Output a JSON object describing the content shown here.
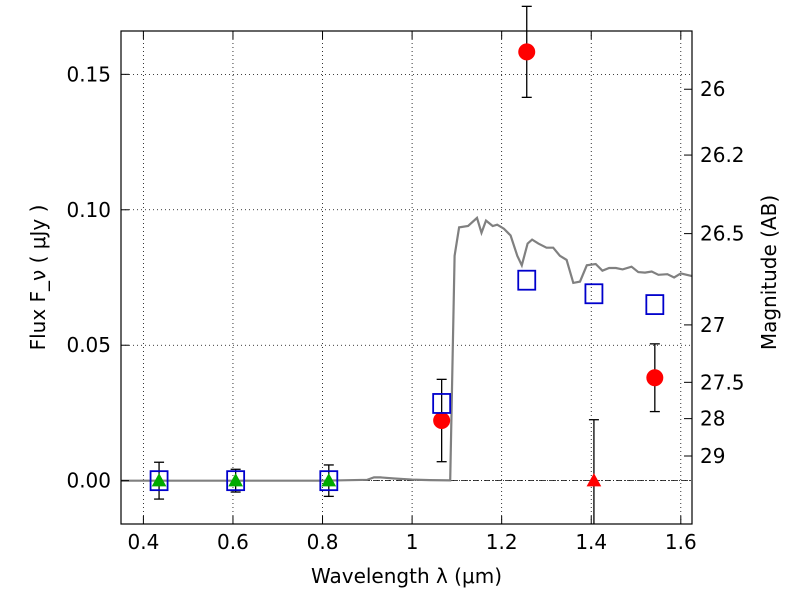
{
  "chart_data": {
    "type": "scatter",
    "title": "",
    "xlabel": "Wavelength  λ (μm)",
    "ylabel": "Flux  F_ν  ( μJy )",
    "ylabel_right": "Magnitude (AB)",
    "xlim": [
      0.35,
      1.625
    ],
    "ylim": [
      -0.016,
      0.166
    ],
    "grid": true,
    "x_ticks": [
      0.4,
      0.6,
      0.8,
      1.0,
      1.2,
      1.4,
      1.6
    ],
    "x_tick_labels": [
      "0.4",
      "0.6",
      "0.8",
      "1",
      "1.2",
      "1.4",
      "1.6"
    ],
    "y_ticks": [
      0.0,
      0.05,
      0.1,
      0.15
    ],
    "y_tick_labels": [
      "0.00",
      "0.05",
      "0.10",
      "0.15"
    ],
    "right_ticks": [
      {
        "label": "26",
        "flux": 0.1445
      },
      {
        "label": "26.2",
        "flux": 0.1202
      },
      {
        "label": "26.5",
        "flux": 0.0912
      },
      {
        "label": "27",
        "flux": 0.0575
      },
      {
        "label": "27.5",
        "flux": 0.0363
      },
      {
        "label": "28",
        "flux": 0.0229
      },
      {
        "label": "29",
        "flux": 0.0091
      }
    ],
    "zero_line": 0.0,
    "model_sed": {
      "color": "#808080",
      "x": [
        0.35,
        0.6,
        0.8,
        0.9,
        0.915,
        0.93,
        0.96,
        1.0,
        1.04,
        1.085,
        1.095,
        1.105,
        1.125,
        1.145,
        1.155,
        1.165,
        1.18,
        1.19,
        1.205,
        1.22,
        1.235,
        1.245,
        1.258,
        1.268,
        1.282,
        1.3,
        1.315,
        1.33,
        1.345,
        1.36,
        1.375,
        1.39,
        1.41,
        1.425,
        1.44,
        1.455,
        1.47,
        1.49,
        1.505,
        1.52,
        1.535,
        1.55,
        1.57,
        1.585,
        1.6,
        1.625
      ],
      "y": [
        0.0,
        0.0,
        0.0,
        0.0003,
        0.0012,
        0.0012,
        0.0008,
        0.0004,
        0.0002,
        0.0001,
        0.083,
        0.0935,
        0.094,
        0.097,
        0.0915,
        0.096,
        0.094,
        0.0945,
        0.093,
        0.0905,
        0.083,
        0.0795,
        0.0875,
        0.089,
        0.0875,
        0.086,
        0.086,
        0.083,
        0.0815,
        0.073,
        0.0735,
        0.0795,
        0.08,
        0.0775,
        0.0785,
        0.0785,
        0.078,
        0.079,
        0.077,
        0.0768,
        0.0772,
        0.076,
        0.0762,
        0.075,
        0.0765,
        0.0755
      ]
    },
    "series": [
      {
        "name": "",
        "marker": "circle",
        "color": "#ff0000",
        "points": [
          {
            "x": 1.066,
            "y": 0.0222,
            "err": 0.0152
          },
          {
            "x": 1.256,
            "y": 0.1583,
            "err": 0.0168
          },
          {
            "x": 1.542,
            "y": 0.038,
            "err": 0.0125
          }
        ]
      },
      {
        "name": "",
        "marker": "triangle",
        "color": "#ff0000",
        "points": [
          {
            "x": 1.406,
            "y": 0.0,
            "err": 0.0225
          }
        ]
      },
      {
        "name": "",
        "marker": "triangle",
        "color": "#00aa00",
        "points": [
          {
            "x": 0.435,
            "y": 0.0,
            "err": 0.0068
          },
          {
            "x": 0.606,
            "y": 0.0,
            "err": 0.0042
          },
          {
            "x": 0.814,
            "y": 0.0,
            "err": 0.0058
          }
        ]
      },
      {
        "name": "",
        "marker": "open-square",
        "color": "#0000cc",
        "points": [
          {
            "x": 0.435,
            "y": 0.0
          },
          {
            "x": 0.606,
            "y": 0.0
          },
          {
            "x": 0.814,
            "y": 0.0
          },
          {
            "x": 1.066,
            "y": 0.0285
          },
          {
            "x": 1.256,
            "y": 0.074
          },
          {
            "x": 1.406,
            "y": 0.069
          },
          {
            "x": 1.542,
            "y": 0.065
          }
        ]
      }
    ]
  }
}
